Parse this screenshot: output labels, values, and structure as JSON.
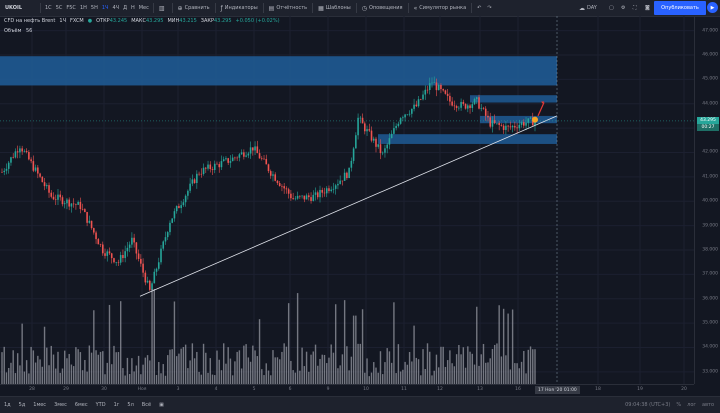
{
  "toolbar": {
    "symbol": "UKOIL",
    "intervals": [
      "1С",
      "5С",
      "F5С",
      "1Н",
      "5Н",
      "1Ч",
      "4Ч",
      "Д",
      "Н",
      "Мес"
    ],
    "active_interval": "1Ч",
    "compare": "Сравнить",
    "indicators": "Индикаторы",
    "reports": "Отчётность",
    "templates": "Шаблоны",
    "alerts": "Оповещения",
    "simulator": "Симулятор рынка",
    "day_label": "DAY",
    "publish": "Опубликовать"
  },
  "legend": {
    "title": "CFD на нефть Brent",
    "interval": "1Ч",
    "exchange": "FXCM",
    "open_label": "ОТКР",
    "open": "43.245",
    "high_label": "МАКС",
    "high": "43.295",
    "low_label": "МИН",
    "low": "43.215",
    "close_label": "ЗАКР",
    "close": "43.295",
    "change": "+0.050 (+0.02%)",
    "volume_label": "Объём",
    "volume_value": "56"
  },
  "price_axis": {
    "labels": [
      "47.000",
      "46.000",
      "45.000",
      "44.000",
      "43.000",
      "42.000",
      "41.000",
      "40.000",
      "39.000",
      "38.000",
      "37.000",
      "36.000",
      "35.000",
      "34.000",
      "33.000"
    ],
    "current_price": "43.295",
    "current_price_color": "#26a69a",
    "secondary_badge": "00:27",
    "secondary_badge_color": "#1e6f66"
  },
  "time_axis": {
    "labels": [
      "28",
      "29",
      "30",
      "Ноя",
      "3",
      "4",
      "5",
      "6",
      "9",
      "10",
      "11",
      "12",
      "13",
      "16",
      "18",
      "19",
      "20"
    ],
    "cursor_label": "17 Ноя '20   01:00"
  },
  "bottombar": {
    "ranges": [
      "1д",
      "5д",
      "1мес",
      "3мес",
      "6мес",
      "YTD",
      "1г",
      "5л",
      "Всё"
    ],
    "time": "09:04:38 (UTC+3)",
    "pct": "%",
    "log": "лог",
    "auto": "авто"
  },
  "colors": {
    "up": "#26a69a",
    "down": "#ef5350",
    "zone": "#1f5a94",
    "background": "#131722"
  },
  "chart_data": {
    "type": "candlestick",
    "title": "CFD на нефть Brent, 1Ч, FXCM",
    "y_range": [
      32.5,
      47.6
    ],
    "zones": [
      {
        "from": 44.75,
        "to": 45.95
      },
      {
        "from": 44.05,
        "to": 44.35
      },
      {
        "from": 43.2,
        "to": 43.5
      },
      {
        "from": 42.35,
        "to": 42.75
      }
    ],
    "trendline": {
      "from_label": "Ноя",
      "from_price": 36.1,
      "to_label": "16",
      "to_price": 43.4
    },
    "anchors": [
      {
        "i": 0,
        "p": 41.2
      },
      {
        "i": 8,
        "p": 42.3
      },
      {
        "i": 22,
        "p": 40.2
      },
      {
        "i": 35,
        "p": 39.8
      },
      {
        "i": 45,
        "p": 38.0
      },
      {
        "i": 52,
        "p": 37.5
      },
      {
        "i": 58,
        "p": 38.4
      },
      {
        "i": 66,
        "p": 36.3
      },
      {
        "i": 75,
        "p": 39.2
      },
      {
        "i": 88,
        "p": 41.2
      },
      {
        "i": 102,
        "p": 41.7
      },
      {
        "i": 112,
        "p": 42.2
      },
      {
        "i": 120,
        "p": 41.2
      },
      {
        "i": 130,
        "p": 40.1
      },
      {
        "i": 140,
        "p": 40.2
      },
      {
        "i": 150,
        "p": 40.8
      },
      {
        "i": 155,
        "p": 41.2
      },
      {
        "i": 159,
        "p": 43.4
      },
      {
        "i": 165,
        "p": 42.6
      },
      {
        "i": 170,
        "p": 41.9
      },
      {
        "i": 178,
        "p": 43.5
      },
      {
        "i": 185,
        "p": 43.9
      },
      {
        "i": 192,
        "p": 44.9
      },
      {
        "i": 200,
        "p": 44.1
      },
      {
        "i": 206,
        "p": 43.9
      },
      {
        "i": 212,
        "p": 44.1
      },
      {
        "i": 218,
        "p": 43.2
      },
      {
        "i": 226,
        "p": 43.0
      },
      {
        "i": 232,
        "p": 43.2
      },
      {
        "i": 238,
        "p": 43.295
      }
    ],
    "volume_max": 100
  }
}
